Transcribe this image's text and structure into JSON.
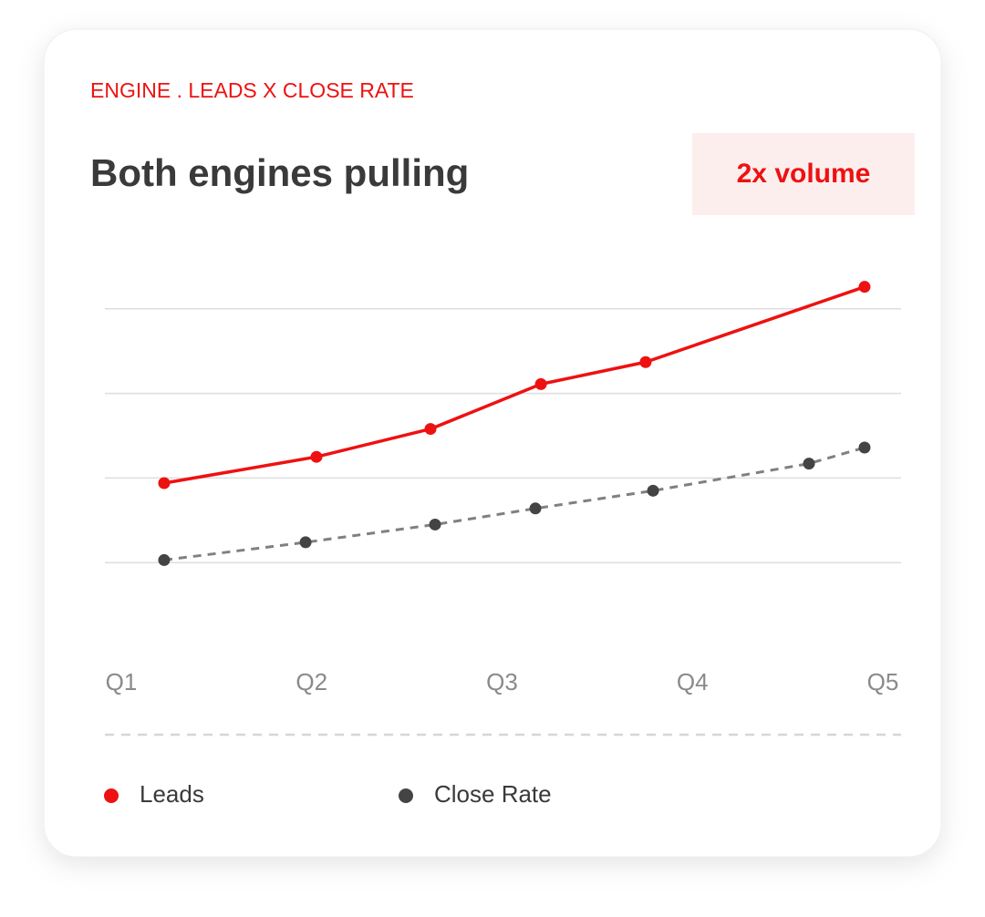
{
  "card": {
    "eyebrow": "ENGINE . LEADS X CLOSE RATE",
    "badge": "2x volume"
  },
  "chart_data": {
    "type": "line",
    "title": "Both engines pulling",
    "xlim": [
      1,
      5
    ],
    "xticks": [
      {
        "value": 1,
        "label": "Q1"
      },
      {
        "value": 2,
        "label": "Q2"
      },
      {
        "value": 3,
        "label": "Q3"
      },
      {
        "value": 4,
        "label": "Q4"
      },
      {
        "value": 5,
        "label": "Q5"
      }
    ],
    "ylim": [
      0,
      5
    ],
    "yticks": [
      1,
      2,
      3,
      4
    ],
    "grid": true,
    "series": [
      {
        "name": "Leads",
        "color": "#ee1111",
        "line_color": "#ee1111",
        "line_style": "solid",
        "x": [
          1.225,
          2.025,
          2.624,
          3.204,
          3.754,
          4.904
        ],
        "values": [
          1.94,
          2.25,
          2.58,
          3.11,
          3.37,
          4.26
        ]
      },
      {
        "name": "Close Rate",
        "color": "#444444",
        "line_color": "#808080",
        "line_style": "dashed",
        "x": [
          1.225,
          1.968,
          2.648,
          3.175,
          3.793,
          4.612,
          4.904
        ],
        "values": [
          1.03,
          1.24,
          1.45,
          1.64,
          1.85,
          2.17,
          2.36
        ]
      }
    ]
  }
}
